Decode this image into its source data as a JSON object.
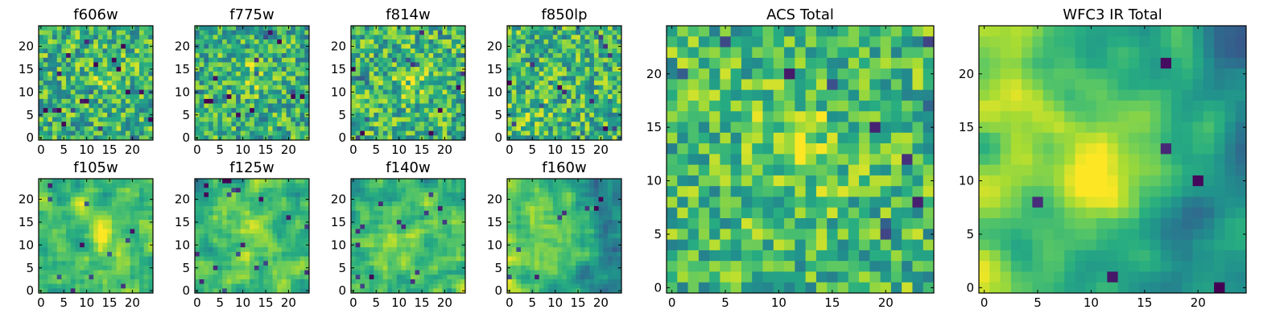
{
  "chart_data": [
    {
      "type": "heatmap",
      "title": "f606w",
      "grid_size": 25,
      "xlim": [
        0,
        24
      ],
      "ylim": [
        0,
        24
      ],
      "x_ticks": [
        "0",
        "5",
        "10",
        "15",
        "20"
      ],
      "y_ticks": [
        "0",
        "5",
        "10",
        "15",
        "20"
      ],
      "colormap": "viridis",
      "values": null
    },
    {
      "type": "heatmap",
      "title": "f775w",
      "grid_size": 25,
      "xlim": [
        0,
        24
      ],
      "ylim": [
        0,
        24
      ],
      "x_ticks": [
        "0",
        "5",
        "10",
        "15",
        "20"
      ],
      "y_ticks": [
        "0",
        "5",
        "10",
        "15",
        "20"
      ],
      "colormap": "viridis",
      "values": null
    },
    {
      "type": "heatmap",
      "title": "f814w",
      "grid_size": 25,
      "xlim": [
        0,
        24
      ],
      "ylim": [
        0,
        24
      ],
      "x_ticks": [
        "0",
        "5",
        "10",
        "15",
        "20"
      ],
      "y_ticks": [
        "0",
        "5",
        "10",
        "15",
        "20"
      ],
      "colormap": "viridis",
      "values": null
    },
    {
      "type": "heatmap",
      "title": "f850lp",
      "grid_size": 25,
      "xlim": [
        0,
        24
      ],
      "ylim": [
        0,
        24
      ],
      "x_ticks": [
        "0",
        "5",
        "10",
        "15",
        "20"
      ],
      "y_ticks": [
        "0",
        "5",
        "10",
        "15",
        "20"
      ],
      "colormap": "viridis",
      "values": null
    },
    {
      "type": "heatmap",
      "title": "f105w",
      "grid_size": 25,
      "xlim": [
        0,
        24
      ],
      "ylim": [
        0,
        24
      ],
      "x_ticks": [
        "0",
        "5",
        "10",
        "15",
        "20"
      ],
      "y_ticks": [
        "0",
        "5",
        "10",
        "15",
        "20"
      ],
      "colormap": "viridis",
      "values": null
    },
    {
      "type": "heatmap",
      "title": "f125w",
      "grid_size": 25,
      "xlim": [
        0,
        24
      ],
      "ylim": [
        0,
        24
      ],
      "x_ticks": [
        "0",
        "5",
        "10",
        "15",
        "20"
      ],
      "y_ticks": [
        "0",
        "5",
        "10",
        "15",
        "20"
      ],
      "colormap": "viridis",
      "values": null
    },
    {
      "type": "heatmap",
      "title": "f140w",
      "grid_size": 25,
      "xlim": [
        0,
        24
      ],
      "ylim": [
        0,
        24
      ],
      "x_ticks": [
        "0",
        "5",
        "10",
        "15",
        "20"
      ],
      "y_ticks": [
        "0",
        "5",
        "10",
        "15",
        "20"
      ],
      "colormap": "viridis",
      "values": null
    },
    {
      "type": "heatmap",
      "title": "f160w",
      "grid_size": 25,
      "xlim": [
        0,
        24
      ],
      "ylim": [
        0,
        24
      ],
      "x_ticks": [
        "0",
        "5",
        "10",
        "15",
        "20"
      ],
      "y_ticks": [
        "0",
        "5",
        "10",
        "15",
        "20"
      ],
      "colormap": "viridis",
      "values": null
    },
    {
      "type": "heatmap",
      "title": "ACS Total",
      "grid_size": 25,
      "xlim": [
        0,
        24
      ],
      "ylim": [
        0,
        24
      ],
      "x_ticks": [
        "0",
        "5",
        "10",
        "15",
        "20"
      ],
      "y_ticks": [
        "0",
        "5",
        "10",
        "15",
        "20"
      ],
      "colormap": "viridis",
      "values": null
    },
    {
      "type": "heatmap",
      "title": "WFC3 IR Total",
      "grid_size": 25,
      "xlim": [
        0,
        24
      ],
      "ylim": [
        0,
        24
      ],
      "x_ticks": [
        "0",
        "5",
        "10",
        "15",
        "20"
      ],
      "y_ticks": [
        "0",
        "5",
        "10",
        "15",
        "20"
      ],
      "colormap": "viridis",
      "values": null
    }
  ],
  "colors": {
    "cmap_low": "#440154",
    "cmap_mid": "#21918c",
    "cmap_high": "#fde725",
    "axes_frame": "#000000",
    "background": "#ffffff"
  }
}
